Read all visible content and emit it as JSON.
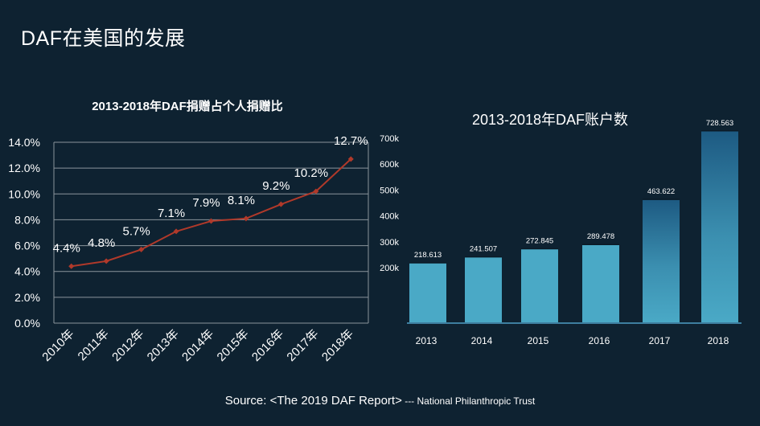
{
  "slide": {
    "title": "DAF在美国的发展",
    "source_main": "Source: <The 2019 DAF Report>",
    "source_small": " --- National Philanthropic Trust"
  },
  "colors": {
    "background": "#0e2231",
    "line": "#b0392a",
    "bar": "#4aa9c6",
    "bar_dark_top": "#1d5a82"
  },
  "chart_data": [
    {
      "type": "line",
      "title": "2013-2018年DAF捐赠占个人捐赠比",
      "categories": [
        "2010年",
        "2011年",
        "2012年",
        "2013年",
        "2014年",
        "2015年",
        "2016年",
        "2017年",
        "2018年"
      ],
      "values": [
        4.4,
        4.8,
        5.7,
        7.1,
        7.9,
        8.1,
        9.2,
        10.2,
        12.7
      ],
      "value_labels": [
        "4.4%",
        "4.8%",
        "5.7%",
        "7.1%",
        "7.9%",
        "8.1%",
        "9.2%",
        "10.2%",
        "12.7%"
      ],
      "y_ticks": [
        "0.0%",
        "2.0%",
        "4.0%",
        "6.0%",
        "8.0%",
        "10.0%",
        "12.0%",
        "14.0%"
      ],
      "ylim": [
        0,
        14
      ],
      "grid": true,
      "marker": "diamond"
    },
    {
      "type": "bar",
      "title": "2013-2018年DAF账户数",
      "categories": [
        "2013",
        "2014",
        "2015",
        "2016",
        "2017",
        "2018"
      ],
      "values": [
        218.613,
        241.507,
        272.845,
        289.478,
        463.622,
        728.563
      ],
      "value_labels": [
        "218.613",
        "241.507",
        "272.845",
        "289.478",
        "463.622",
        "728.563"
      ],
      "y_ticks": [
        {
          "label": "200k",
          "value": 200
        },
        {
          "label": "300k",
          "value": 300
        },
        {
          "label": "400k",
          "value": 400
        },
        {
          "label": "500k",
          "value": 500
        },
        {
          "label": "600k",
          "value": 600
        },
        {
          "label": "700k",
          "value": 700
        }
      ],
      "grid": false
    }
  ]
}
